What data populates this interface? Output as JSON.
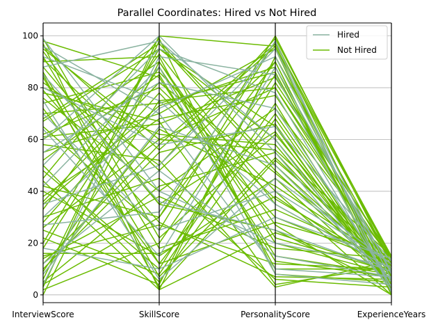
{
  "chart_data": {
    "type": "parallel-coordinates",
    "title": "Parallel Coordinates: Hired vs Not Hired",
    "dimensions": [
      "InterviewScore",
      "SkillScore",
      "PersonalityScore",
      "ExperienceYears"
    ],
    "ylim": [
      -3,
      105
    ],
    "yticks": [
      0,
      20,
      40,
      60,
      80,
      100
    ],
    "ytick_labels": [
      "0",
      "20",
      "40",
      "60",
      "80",
      "100"
    ],
    "grid": true,
    "legend_position": "top-right",
    "series": [
      {
        "name": "Not Hired",
        "color": "#6abb00",
        "lines": [
          [
            3,
            100,
            96,
            14
          ],
          [
            97,
            2,
            92,
            12
          ],
          [
            45,
            99,
            8,
            5
          ],
          [
            12,
            58,
            97,
            15
          ],
          [
            88,
            35,
            63,
            3
          ],
          [
            60,
            90,
            22,
            9
          ],
          [
            25,
            8,
            74,
            1
          ],
          [
            78,
            67,
            4,
            11
          ],
          [
            5,
            42,
            55,
            7
          ],
          [
            92,
            18,
            33,
            13
          ],
          [
            35,
            73,
            88,
            2
          ],
          [
            68,
            97,
            48,
            6
          ],
          [
            15,
            27,
            12,
            10
          ],
          [
            82,
            50,
            99,
            14
          ],
          [
            50,
            5,
            68,
            4
          ],
          [
            98,
            84,
            15,
            8
          ],
          [
            8,
            64,
            42,
            12
          ],
          [
            42,
            30,
            90,
            0
          ],
          [
            72,
            12,
            28,
            15
          ],
          [
            20,
            95,
            60,
            5
          ],
          [
            95,
            60,
            80,
            9
          ],
          [
            30,
            45,
            6,
            3
          ],
          [
            62,
            80,
            37,
            11
          ],
          [
            2,
            20,
            85,
            6
          ],
          [
            85,
            3,
            52,
            13
          ],
          [
            55,
            70,
            95,
            1
          ],
          [
            18,
            88,
            20,
            8
          ],
          [
            76,
            40,
            72,
            14
          ],
          [
            40,
            15,
            45,
            4
          ],
          [
            90,
            92,
            10,
            10
          ],
          [
            10,
            55,
            66,
            2
          ],
          [
            65,
            25,
            98,
            7
          ],
          [
            28,
            78,
            30,
            12
          ],
          [
            80,
            62,
            58,
            5
          ],
          [
            48,
            10,
            82,
            15
          ],
          [
            94,
            35,
            25,
            3
          ],
          [
            6,
            98,
            50,
            9
          ],
          [
            58,
            52,
            3,
            13
          ],
          [
            22,
            4,
            92,
            6
          ],
          [
            74,
            86,
            40,
            0
          ],
          [
            38,
            68,
            77,
            11
          ],
          [
            99,
            22,
            62,
            8
          ],
          [
            14,
            38,
            18,
            14
          ],
          [
            70,
            74,
            86,
            2
          ],
          [
            33,
            93,
            35,
            10
          ],
          [
            86,
            12,
            70,
            5
          ],
          [
            4,
            30,
            100,
            12
          ],
          [
            52,
            85,
            13,
            7
          ],
          [
            26,
            60,
            56,
            15
          ],
          [
            91,
            48,
            90,
            1
          ],
          [
            44,
            2,
            24,
            9
          ],
          [
            67,
            95,
            65,
            4
          ],
          [
            9,
            75,
            80,
            13
          ],
          [
            79,
            28,
            7,
            6
          ],
          [
            36,
            82,
            47,
            11
          ],
          [
            96,
            56,
            96,
            3
          ],
          [
            16,
            16,
            38,
            8
          ],
          [
            61,
            66,
            84,
            14
          ],
          [
            0,
            90,
            27,
            0
          ],
          [
            84,
            7,
            53,
            10
          ]
        ]
      },
      {
        "name": "Hired",
        "color": "#8ab3a0",
        "lines": [
          [
            96,
            70,
            10,
            7
          ],
          [
            4,
            92,
            85,
            3
          ],
          [
            70,
            25,
            40,
            12
          ],
          [
            35,
            50,
            95,
            8
          ],
          [
            88,
            98,
            60,
            2
          ],
          [
            18,
            10,
            30,
            14
          ],
          [
            55,
            82,
            72,
            5
          ],
          [
            99,
            40,
            20,
            11
          ],
          [
            8,
            65,
            50,
            6
          ],
          [
            64,
            15,
            88,
            9
          ],
          [
            42,
            88,
            8,
            4
          ],
          [
            80,
            58,
            65,
            13
          ],
          [
            27,
            32,
            98,
            1
          ],
          [
            92,
            75,
            35,
            10
          ],
          [
            12,
            48,
            15,
            7
          ],
          [
            50,
            95,
            78,
            3
          ],
          [
            75,
            6,
            45,
            12
          ],
          [
            30,
            72,
            92,
            6
          ],
          [
            85,
            36,
            25,
            9
          ],
          [
            60,
            100,
            55,
            2
          ]
        ]
      }
    ]
  }
}
